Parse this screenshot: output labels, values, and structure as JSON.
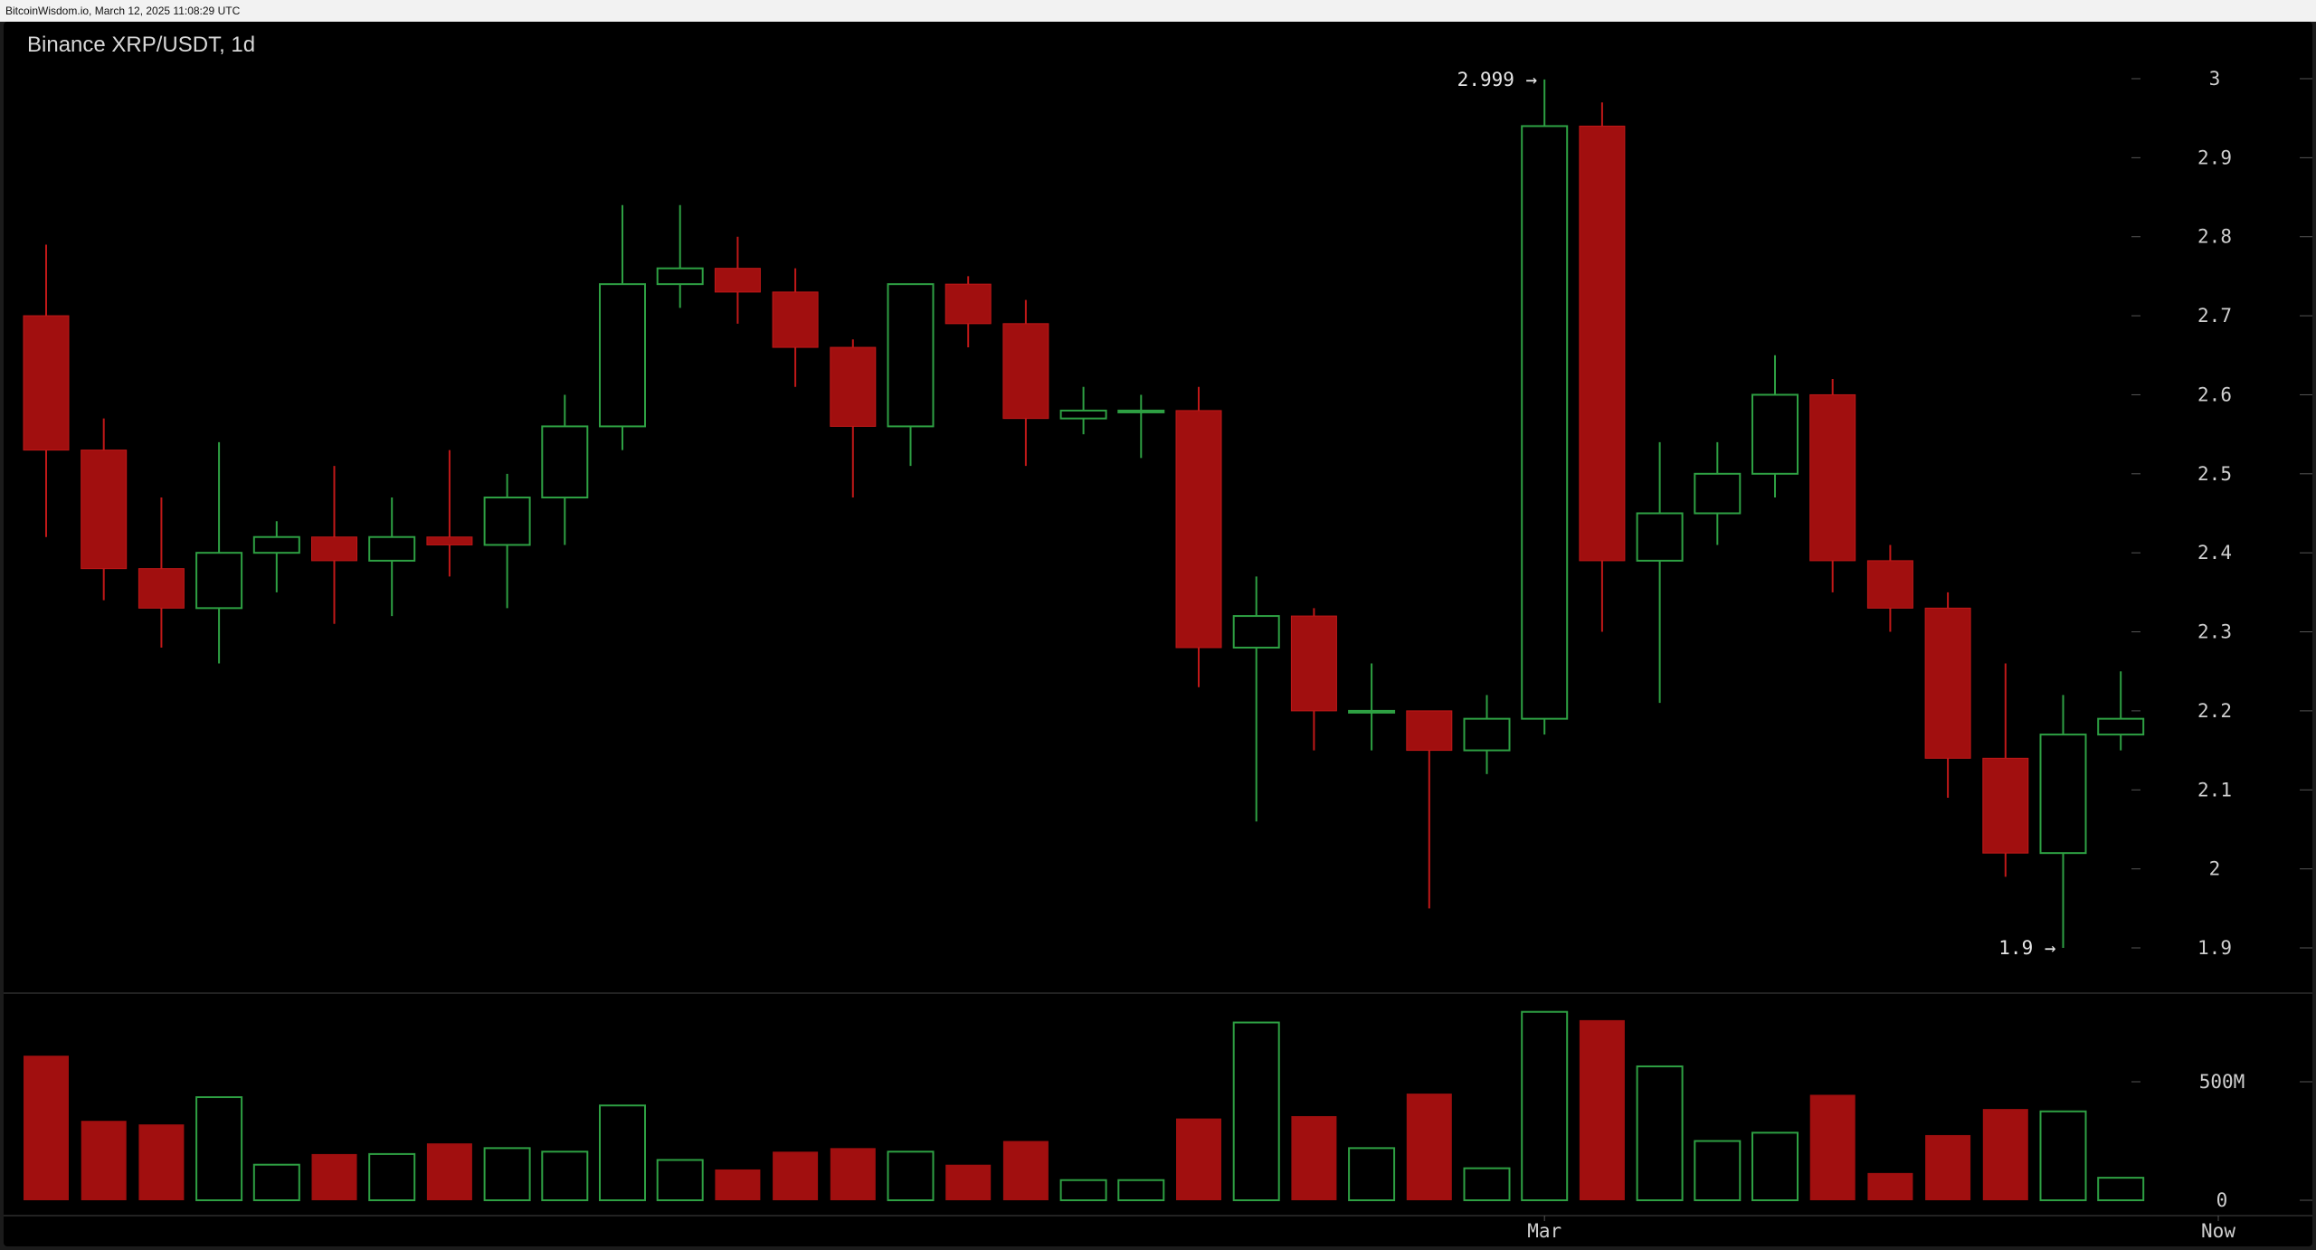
{
  "header": {
    "caption": "BitcoinWisdom.io, March 12, 2025 11:08:29 UTC"
  },
  "chart_data": {
    "type": "candlestick",
    "title": "Binance XRP/USDT, 1d",
    "price_axis": {
      "min": 1.85,
      "max": 3.0,
      "ticks": [
        1.9,
        2,
        2.1,
        2.2,
        2.3,
        2.4,
        2.5,
        2.6,
        2.7,
        2.8,
        2.9,
        3
      ]
    },
    "volume_axis": {
      "min": 0,
      "ticks": [
        {
          "value": 0,
          "label": "0"
        },
        {
          "value": 500,
          "label": "500M"
        }
      ],
      "unit": "M"
    },
    "x_labels": [
      {
        "index": 26,
        "label": "Mar"
      },
      {
        "index": 38,
        "label": "Now"
      }
    ],
    "annotations": [
      {
        "index": 26,
        "value": 2.999,
        "label": "2.999 →"
      },
      {
        "index": 35,
        "value": 1.9,
        "label": "1.9 →"
      }
    ],
    "colors": {
      "up": "#2ea043",
      "down": "#a10f0f",
      "down_edge": "#c01818",
      "grid": "#555555"
    },
    "candles": [
      {
        "open": 2.7,
        "high": 2.79,
        "low": 2.42,
        "close": 2.53,
        "volume": 610
      },
      {
        "open": 2.53,
        "high": 2.57,
        "low": 2.34,
        "close": 2.38,
        "volume": 335
      },
      {
        "open": 2.38,
        "high": 2.47,
        "low": 2.28,
        "close": 2.33,
        "volume": 320
      },
      {
        "open": 2.33,
        "high": 2.54,
        "low": 2.26,
        "close": 2.4,
        "volume": 435
      },
      {
        "open": 2.4,
        "high": 2.44,
        "low": 2.35,
        "close": 2.42,
        "volume": 150
      },
      {
        "open": 2.42,
        "high": 2.51,
        "low": 2.31,
        "close": 2.39,
        "volume": 195
      },
      {
        "open": 2.39,
        "high": 2.47,
        "low": 2.32,
        "close": 2.42,
        "volume": 195
      },
      {
        "open": 2.42,
        "high": 2.53,
        "low": 2.37,
        "close": 2.41,
        "volume": 240
      },
      {
        "open": 2.41,
        "high": 2.5,
        "low": 2.33,
        "close": 2.47,
        "volume": 220
      },
      {
        "open": 2.47,
        "high": 2.6,
        "low": 2.41,
        "close": 2.56,
        "volume": 205
      },
      {
        "open": 2.56,
        "high": 2.84,
        "low": 2.53,
        "close": 2.74,
        "volume": 400
      },
      {
        "open": 2.74,
        "high": 2.84,
        "low": 2.71,
        "close": 2.76,
        "volume": 170
      },
      {
        "open": 2.76,
        "high": 2.8,
        "low": 2.69,
        "close": 2.73,
        "volume": 130
      },
      {
        "open": 2.73,
        "high": 2.76,
        "low": 2.61,
        "close": 2.66,
        "volume": 205
      },
      {
        "open": 2.66,
        "high": 2.67,
        "low": 2.47,
        "close": 2.56,
        "volume": 220
      },
      {
        "open": 2.56,
        "high": 2.74,
        "low": 2.51,
        "close": 2.74,
        "volume": 205
      },
      {
        "open": 2.74,
        "high": 2.75,
        "low": 2.66,
        "close": 2.69,
        "volume": 150
      },
      {
        "open": 2.69,
        "high": 2.72,
        "low": 2.51,
        "close": 2.57,
        "volume": 250
      },
      {
        "open": 2.57,
        "high": 2.61,
        "low": 2.55,
        "close": 2.58,
        "volume": 85
      },
      {
        "open": 2.58,
        "high": 2.6,
        "low": 2.52,
        "close": 2.58,
        "volume": 85
      },
      {
        "open": 2.58,
        "high": 2.61,
        "low": 2.23,
        "close": 2.28,
        "volume": 345
      },
      {
        "open": 2.28,
        "high": 2.37,
        "low": 2.06,
        "close": 2.32,
        "volume": 750
      },
      {
        "open": 2.32,
        "high": 2.33,
        "low": 2.15,
        "close": 2.2,
        "volume": 355
      },
      {
        "open": 2.2,
        "high": 2.26,
        "low": 2.15,
        "close": 2.2,
        "volume": 220
      },
      {
        "open": 2.2,
        "high": 2.2,
        "low": 1.95,
        "close": 2.15,
        "volume": 450
      },
      {
        "open": 2.15,
        "high": 2.22,
        "low": 2.12,
        "close": 2.19,
        "volume": 135
      },
      {
        "open": 2.19,
        "high": 2.999,
        "low": 2.17,
        "close": 2.94,
        "volume": 795
      },
      {
        "open": 2.94,
        "high": 2.97,
        "low": 2.3,
        "close": 2.39,
        "volume": 760
      },
      {
        "open": 2.39,
        "high": 2.54,
        "low": 2.21,
        "close": 2.45,
        "volume": 565
      },
      {
        "open": 2.45,
        "high": 2.54,
        "low": 2.41,
        "close": 2.5,
        "volume": 250
      },
      {
        "open": 2.5,
        "high": 2.65,
        "low": 2.47,
        "close": 2.6,
        "volume": 285
      },
      {
        "open": 2.6,
        "high": 2.62,
        "low": 2.35,
        "close": 2.39,
        "volume": 445
      },
      {
        "open": 2.39,
        "high": 2.41,
        "low": 2.3,
        "close": 2.33,
        "volume": 115
      },
      {
        "open": 2.33,
        "high": 2.35,
        "low": 2.09,
        "close": 2.14,
        "volume": 275
      },
      {
        "open": 2.14,
        "high": 2.26,
        "low": 1.99,
        "close": 2.02,
        "volume": 385
      },
      {
        "open": 2.02,
        "high": 2.22,
        "low": 1.9,
        "close": 2.17,
        "volume": 375
      },
      {
        "open": 2.17,
        "high": 2.25,
        "low": 2.15,
        "close": 2.19,
        "volume": 95
      }
    ]
  }
}
